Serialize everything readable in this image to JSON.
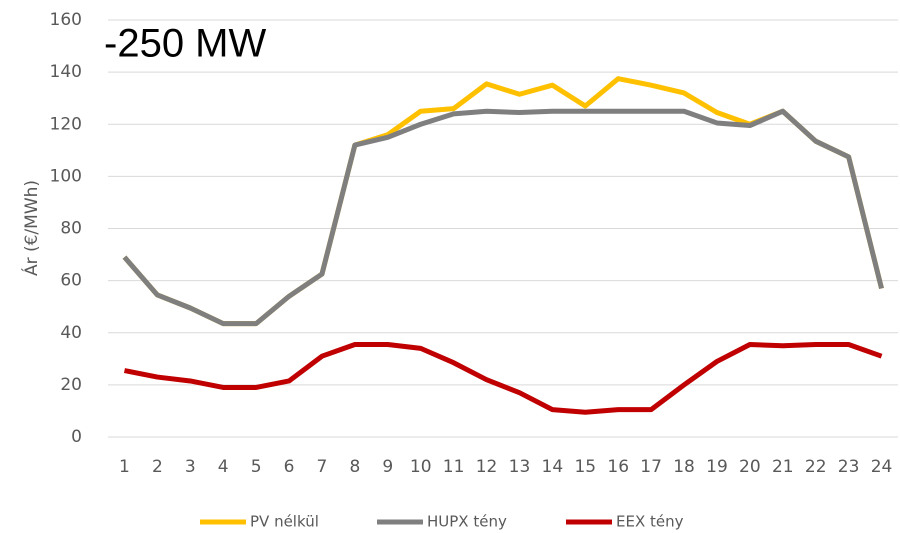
{
  "chart_data": {
    "type": "line",
    "annotation": "-250 MW",
    "y_label": "Ár (€/MWh)",
    "categories": [
      "1",
      "2",
      "3",
      "4",
      "5",
      "6",
      "7",
      "8",
      "9",
      "10",
      "11",
      "12",
      "13",
      "14",
      "15",
      "16",
      "17",
      "18",
      "19",
      "20",
      "21",
      "22",
      "23",
      "24"
    ],
    "series": [
      {
        "name": "PV nélkül",
        "color": "#FFC000",
        "values": [
          69,
          54.5,
          49.5,
          43.5,
          43.5,
          54,
          62.5,
          112,
          116,
          125,
          126,
          135.5,
          131.5,
          135,
          127,
          137.5,
          135,
          132,
          124.5,
          120,
          125,
          113.5,
          107.5,
          57
        ]
      },
      {
        "name": "HUPX tény",
        "color": "#7F7F7F",
        "values": [
          69,
          54.5,
          49.5,
          43.5,
          43.5,
          54,
          62.5,
          112,
          115,
          120,
          124,
          125,
          124.5,
          125,
          125,
          125,
          125,
          125,
          120.5,
          119.5,
          125,
          113.5,
          107.5,
          57
        ]
      },
      {
        "name": "EEX tény",
        "color": "#C00000",
        "values": [
          25.5,
          23,
          21.5,
          19,
          19,
          21.5,
          31,
          35.5,
          35.5,
          34,
          28.5,
          22,
          17,
          10.5,
          9.5,
          10.5,
          10.5,
          20,
          29,
          35.5,
          35,
          35.5,
          35.5,
          31
        ]
      }
    ],
    "ylim": [
      0,
      160
    ],
    "yticks": [
      0,
      20,
      40,
      60,
      80,
      100,
      120,
      140,
      160
    ],
    "grid": true,
    "legend": "bottom"
  }
}
